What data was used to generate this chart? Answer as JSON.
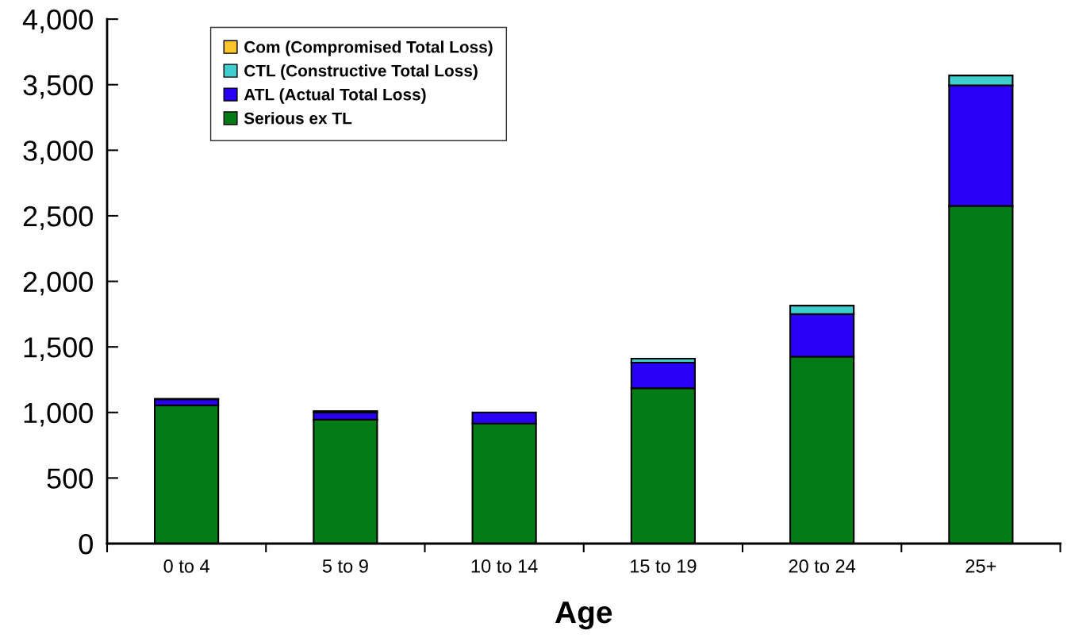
{
  "chart_data": {
    "type": "bar",
    "stacked": true,
    "xlabel": "Age",
    "categories": [
      "0 to 4",
      "5 to 9",
      "10 to 14",
      "15 to 19",
      "20 to 24",
      "25+"
    ],
    "series": [
      {
        "name": "Serious ex TL",
        "color": "#037b17",
        "values": [
          1055,
          945,
          915,
          1185,
          1425,
          2575
        ]
      },
      {
        "name": "ATL (Actual Total Loss)",
        "color": "#2a00f5",
        "values": [
          45,
          55,
          85,
          195,
          325,
          920
        ]
      },
      {
        "name": "CTL (Constructive Total Loss)",
        "color": "#3ecece",
        "values": [
          5,
          10,
          0,
          30,
          65,
          75
        ]
      },
      {
        "name": "Com (Compromised Total Loss)",
        "color": "#fcc52b",
        "values": [
          0,
          0,
          0,
          0,
          0,
          0
        ]
      }
    ],
    "ylim": [
      0,
      4000
    ],
    "yticks": [
      {
        "value": 0,
        "label": "0"
      },
      {
        "value": 500,
        "label": "500"
      },
      {
        "value": 1000,
        "label": "1,000"
      },
      {
        "value": 1500,
        "label": "1,500"
      },
      {
        "value": 2000,
        "label": "2,000"
      },
      {
        "value": 2500,
        "label": "2,500"
      },
      {
        "value": 3000,
        "label": "3,000"
      },
      {
        "value": 3500,
        "label": "3,500"
      },
      {
        "value": 4000,
        "label": "4,000"
      }
    ],
    "grid": false,
    "legend": "top left"
  }
}
